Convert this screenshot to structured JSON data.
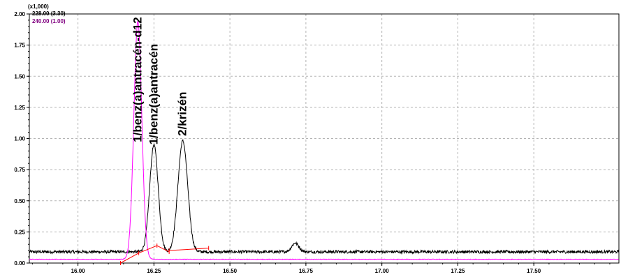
{
  "chart_data": {
    "type": "line",
    "multiplier_label": "(x1,000)",
    "legend": [
      {
        "text": "228.00 (3.30)",
        "color": "#000000"
      },
      {
        "text": "240.00 (1.00)",
        "color": "#800080"
      }
    ],
    "xlim": [
      15.84,
      17.78
    ],
    "ylim": [
      0,
      2.0
    ],
    "x_ticks": [
      {
        "value": 16.0,
        "label": "16.00"
      },
      {
        "value": 16.25,
        "label": "16.25"
      },
      {
        "value": 16.5,
        "label": "16.50"
      },
      {
        "value": 16.75,
        "label": "16.75"
      },
      {
        "value": 17.0,
        "label": "17.00"
      },
      {
        "value": 17.25,
        "label": "17.25"
      },
      {
        "value": 17.5,
        "label": "17.50"
      }
    ],
    "y_ticks": [
      {
        "value": 0.0,
        "label": "0.00"
      },
      {
        "value": 0.25,
        "label": "0.25"
      },
      {
        "value": 0.5,
        "label": "0.50"
      },
      {
        "value": 0.75,
        "label": "0.75"
      },
      {
        "value": 1.0,
        "label": "1.00"
      },
      {
        "value": 1.25,
        "label": "1.25"
      },
      {
        "value": 1.5,
        "label": "1.50"
      },
      {
        "value": 1.75,
        "label": "1.75"
      },
      {
        "value": 2.0,
        "label": "2.00"
      }
    ],
    "grid": true,
    "series": [
      {
        "name": "228.00 (3.30)",
        "color": "#000000",
        "baseline": 0.09,
        "noise": 0.012,
        "peaks": [
          {
            "x": 16.25,
            "height": 0.86,
            "width": 0.014
          },
          {
            "x": 16.345,
            "height": 0.89,
            "width": 0.016
          },
          {
            "x": 16.715,
            "height": 0.07,
            "width": 0.012
          }
        ]
      },
      {
        "name": "240.00 (1.00)",
        "color": "#ff00ff",
        "baseline": 0.03,
        "noise": 0.002,
        "peaks": [
          {
            "x": 16.197,
            "height": 1.91,
            "width": 0.013
          }
        ]
      }
    ],
    "integration_lines": [
      {
        "color": "#ff0000",
        "points": [
          [
            16.14,
            0.0
          ],
          [
            16.2,
            0.08
          ],
          [
            16.26,
            0.14
          ],
          [
            16.3,
            0.09
          ]
        ]
      },
      {
        "color": "#ff0000",
        "points": [
          [
            16.3,
            0.1
          ],
          [
            16.43,
            0.12
          ]
        ]
      }
    ],
    "peak_labels": [
      {
        "text": "1/benz(a)antracén-d12",
        "x": 16.197,
        "y": 0.97
      },
      {
        "text": "1/benz(a)antracén",
        "x": 16.25,
        "y": 0.95
      },
      {
        "text": "2/krizén",
        "x": 16.345,
        "y": 1.02
      }
    ]
  }
}
